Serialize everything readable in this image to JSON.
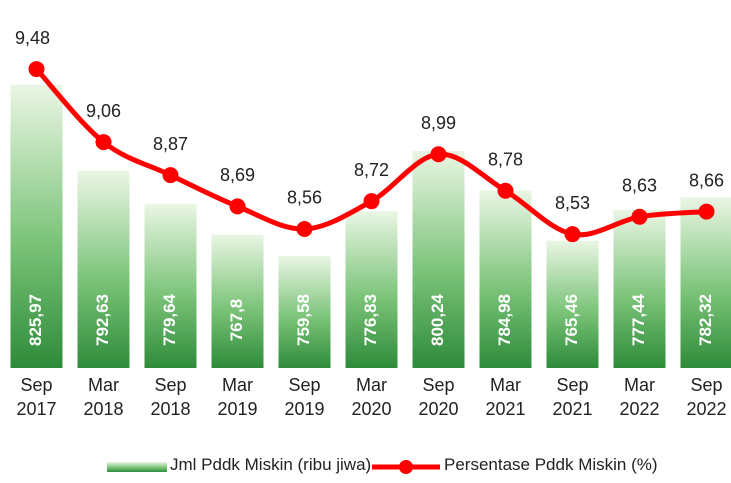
{
  "chart_data": {
    "type": "bar-line",
    "categories": [
      "Sep 2017",
      "Mar 2018",
      "Sep 2018",
      "Mar 2019",
      "Sep 2019",
      "Mar 2020",
      "Sep 2020",
      "Mar 2021",
      "Sep 2021",
      "Mar 2022",
      "Sep 2022"
    ],
    "series": [
      {
        "name": "Jml Pddk Miskin (ribu jiwa)",
        "type": "bar",
        "color": "#2e8b3a",
        "values": [
          825.97,
          792.63,
          779.64,
          767.8,
          759.58,
          776.83,
          800.24,
          784.98,
          765.46,
          777.44,
          782.32
        ],
        "value_labels": [
          "825,97",
          "792,63",
          "779,64",
          "767,8",
          "759,58",
          "776,83",
          "800,24",
          "784,98",
          "765,46",
          "777,44",
          "782,32"
        ]
      },
      {
        "name": "Persentase Pddk Miskin (%)",
        "type": "line",
        "axis": "y2",
        "color": "#ff0000",
        "values": [
          9.48,
          9.06,
          8.87,
          8.69,
          8.56,
          8.72,
          8.99,
          8.78,
          8.53,
          8.63,
          8.66
        ],
        "value_labels": [
          "9,48",
          "9,06",
          "8,87",
          "8,69",
          "8,56",
          "8,72",
          "8,99",
          "8,78",
          "8,53",
          "8,63",
          "8,66"
        ]
      }
    ],
    "ylim": [
      716,
      855
    ],
    "y2lim": [
      7.76,
      9.82
    ]
  }
}
